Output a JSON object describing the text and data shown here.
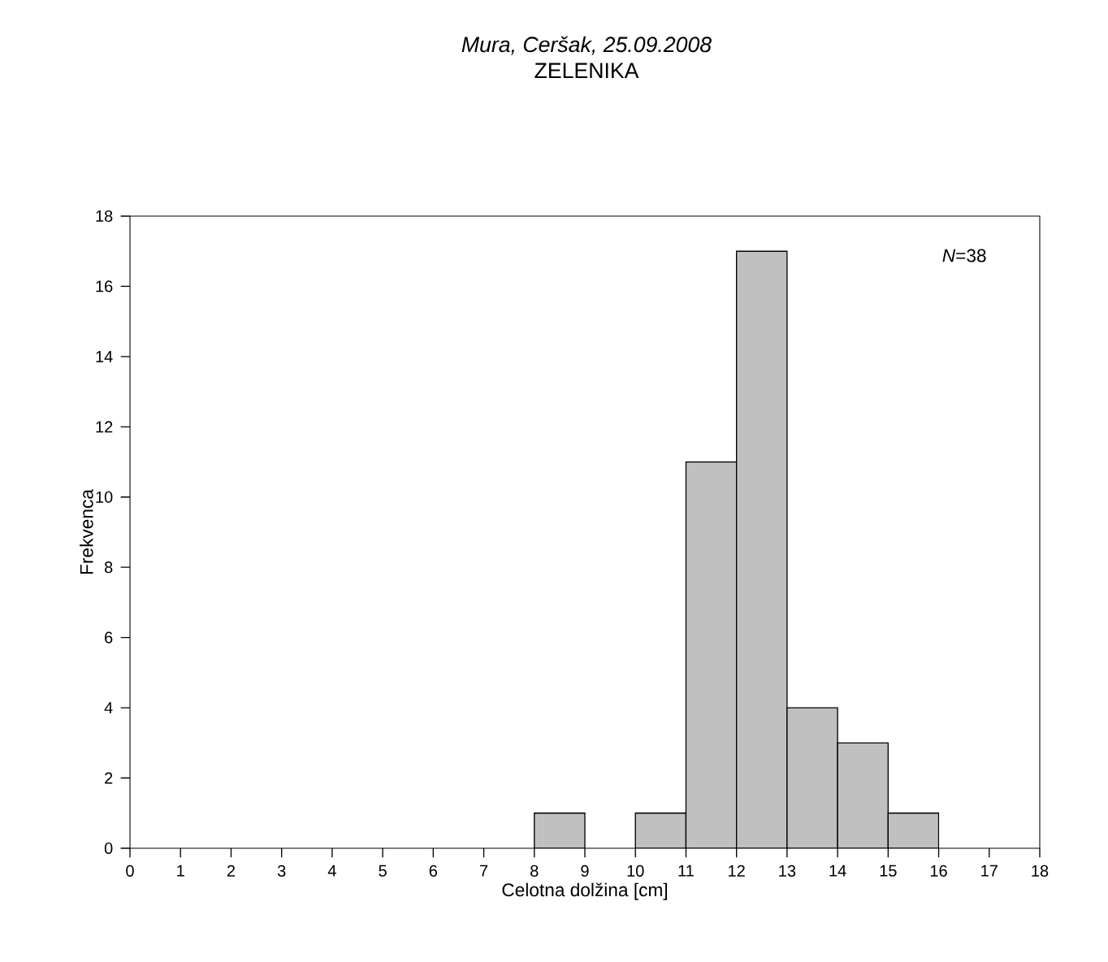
{
  "chart_data": {
    "type": "histogram",
    "title": "*Mura, Ceršak, 25.09.2008*",
    "subtitle": "ZELENIKA",
    "xlabel": "Celotna dolžina [cm]",
    "ylabel": "Frekvenca",
    "bins": [
      0,
      1,
      2,
      3,
      4,
      5,
      6,
      7,
      8,
      9,
      10,
      11,
      12,
      13,
      14,
      15,
      16,
      17,
      18
    ],
    "values": [
      0,
      0,
      0,
      0,
      0,
      0,
      0,
      0,
      1,
      0,
      1,
      11,
      17,
      4,
      3,
      1,
      0,
      0
    ],
    "color": "#c0c0c0",
    "xlim": [
      0,
      18
    ],
    "xticks": [
      0,
      1,
      2,
      3,
      4,
      5,
      6,
      7,
      8,
      9,
      10,
      11,
      12,
      13,
      14,
      15,
      16,
      17,
      18
    ],
    "ylim": [
      0,
      18
    ],
    "yticks": [
      0,
      2,
      4,
      6,
      8,
      10,
      12,
      14,
      16,
      18
    ],
    "annotations": [
      "*N*=38"
    ]
  }
}
